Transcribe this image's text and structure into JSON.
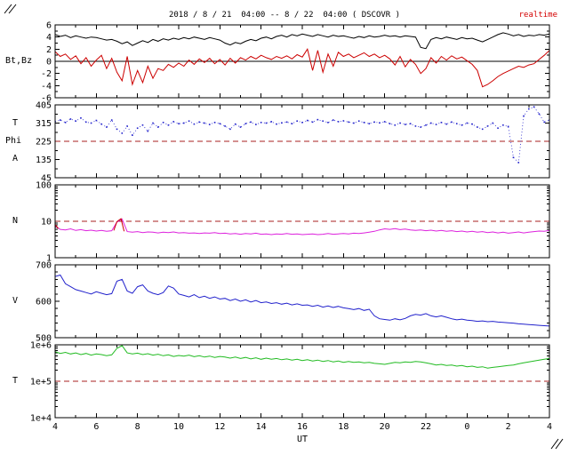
{
  "chart_data": {
    "type": "line",
    "title": "2018 / 8 / 21  04:00 -- 8 / 22  04:00 ( DSCOVR )",
    "corner_label": "realtime",
    "xlabel": "UT",
    "x_range": [
      4,
      28
    ],
    "t_start": 4,
    "t_step": 0.25,
    "x_tick_values": [
      4,
      6,
      8,
      10,
      12,
      14,
      16,
      18,
      20,
      22,
      24,
      26,
      28
    ],
    "x_tick_labels": [
      "4",
      "6",
      "8",
      "10",
      "12",
      "14",
      "16",
      "18",
      "20",
      "22",
      "0",
      "2",
      "4"
    ],
    "panels": [
      {
        "id": "b",
        "label": "Bt,Bz",
        "scale": "linear",
        "range": [
          -6,
          6
        ],
        "ticks": [
          -6,
          -4,
          -2,
          0,
          2,
          4,
          6
        ],
        "tick_labels": [
          "-6",
          "-4",
          "-2",
          "0",
          "2",
          "4",
          "6"
        ],
        "minor_step": 1,
        "zero_line": true,
        "series": [
          {
            "name": "Bt",
            "color": "#000000",
            "values": [
              4.4,
              4.1,
              4.3,
              3.9,
              4.2,
              4.0,
              3.8,
              4.0,
              3.9,
              3.7,
              3.5,
              3.6,
              3.3,
              2.9,
              3.2,
              2.6,
              3.0,
              3.4,
              3.1,
              3.6,
              3.3,
              3.7,
              3.5,
              3.8,
              3.6,
              3.9,
              3.7,
              4.0,
              3.8,
              3.6,
              3.9,
              3.7,
              3.5,
              3.0,
              2.7,
              3.1,
              2.9,
              3.3,
              3.6,
              3.4,
              3.8,
              4.0,
              3.7,
              4.1,
              4.3,
              4.0,
              4.4,
              4.2,
              4.5,
              4.3,
              4.1,
              4.4,
              4.2,
              4.0,
              4.3,
              4.1,
              4.2,
              4.0,
              3.8,
              4.1,
              3.9,
              4.2,
              4.0,
              4.1,
              4.3,
              4.1,
              4.2,
              4.0,
              4.2,
              4.1,
              4.0,
              2.3,
              2.1,
              3.6,
              3.9,
              3.7,
              4.0,
              3.8,
              3.6,
              3.9,
              3.7,
              3.8,
              3.5,
              3.2,
              3.6,
              4.0,
              4.4,
              4.7,
              4.5,
              4.2,
              4.4,
              4.1,
              4.3,
              4.2,
              4.4,
              4.3,
              4.5
            ]
          },
          {
            "name": "Bz",
            "color": "#cc0000",
            "values": [
              1.6,
              0.8,
              1.2,
              0.3,
              0.9,
              -0.4,
              0.6,
              -0.8,
              0.2,
              1.0,
              -1.2,
              0.5,
              -1.8,
              -3.2,
              0.8,
              -3.8,
              -1.5,
              -3.5,
              -0.8,
              -2.8,
              -1.2,
              -1.5,
              -0.5,
              -1.0,
              -0.3,
              -0.8,
              0.2,
              -0.5,
              0.4,
              -0.2,
              0.5,
              -0.4,
              0.3,
              -0.6,
              0.5,
              -0.3,
              0.6,
              0.2,
              0.8,
              0.4,
              1.0,
              0.6,
              0.3,
              0.8,
              0.5,
              0.9,
              0.4,
              1.1,
              0.7,
              2.0,
              -1.5,
              1.8,
              -1.8,
              1.2,
              -0.8,
              1.5,
              0.8,
              1.2,
              0.6,
              1.0,
              1.4,
              0.8,
              1.2,
              0.6,
              1.0,
              0.4,
              -0.6,
              0.8,
              -0.9,
              0.3,
              -0.5,
              -2.0,
              -1.2,
              0.6,
              -0.3,
              0.8,
              0.2,
              0.9,
              0.4,
              0.7,
              0.1,
              -0.5,
              -1.5,
              -4.2,
              -3.8,
              -3.2,
              -2.5,
              -2.0,
              -1.6,
              -1.2,
              -0.8,
              -1.0,
              -0.6,
              -0.4,
              0.3,
              1.0,
              1.8
            ]
          }
        ]
      },
      {
        "id": "angle",
        "label_lines": [
          "T",
          "Phi",
          "A"
        ],
        "scale": "linear",
        "range": [
          45,
          405
        ],
        "ticks": [
          45,
          135,
          225,
          315,
          405
        ],
        "tick_labels": [
          "45",
          "135",
          "225",
          "315",
          "405"
        ],
        "minor_step": 45,
        "ref_line": 225,
        "ref_color": "#aa2222",
        "series": [
          {
            "name": "Phi",
            "color": "#2222cc",
            "style": "dots",
            "values": [
              322,
              330,
              318,
              335,
              325,
              340,
              320,
              315,
              328,
              310,
              295,
              330,
              285,
              265,
              300,
              255,
              290,
              305,
              275,
              315,
              295,
              318,
              305,
              322,
              312,
              315,
              325,
              310,
              320,
              315,
              308,
              318,
              312,
              300,
              285,
              310,
              295,
              312,
              320,
              308,
              318,
              315,
              322,
              310,
              316,
              320,
              312,
              325,
              318,
              328,
              320,
              332,
              325,
              318,
              330,
              322,
              326,
              320,
              315,
              325,
              318,
              312,
              320,
              316,
              322,
              312,
              305,
              315,
              308,
              312,
              300,
              295,
              305,
              315,
              308,
              318,
              310,
              320,
              312,
              305,
              315,
              310,
              295,
              285,
              300,
              315,
              290,
              305,
              298,
              145,
              120,
              350,
              385,
              395,
              360,
              320,
              330
            ]
          }
        ]
      },
      {
        "id": "n",
        "label": "N",
        "scale": "log",
        "range": [
          1,
          100
        ],
        "ticks": [
          1,
          10,
          100
        ],
        "tick_labels": [
          "1",
          "10",
          "100"
        ],
        "ref_line": 10,
        "ref_color": "#aa2222",
        "series": [
          {
            "name": "N",
            "color": "#dd22dd",
            "values": [
              7.5,
              6.0,
              5.8,
              6.2,
              5.6,
              5.9,
              5.5,
              5.7,
              5.4,
              5.6,
              5.3,
              5.5,
              9.5,
              11.5,
              5.2,
              5.0,
              5.2,
              4.9,
              5.1,
              5.0,
              4.8,
              5.0,
              4.9,
              5.1,
              4.8,
              4.9,
              4.7,
              4.8,
              4.6,
              4.8,
              4.7,
              4.9,
              4.6,
              4.7,
              4.5,
              4.6,
              4.4,
              4.6,
              4.5,
              4.7,
              4.4,
              4.5,
              4.3,
              4.5,
              4.4,
              4.6,
              4.4,
              4.5,
              4.3,
              4.4,
              4.5,
              4.3,
              4.4,
              4.6,
              4.4,
              4.5,
              4.6,
              4.5,
              4.7,
              4.6,
              4.8,
              5.0,
              5.3,
              5.8,
              6.2,
              6.0,
              6.3,
              5.9,
              6.1,
              5.8,
              5.6,
              5.8,
              5.5,
              5.7,
              5.4,
              5.6,
              5.3,
              5.5,
              5.2,
              5.4,
              5.1,
              5.3,
              5.0,
              5.2,
              4.9,
              5.1,
              4.8,
              5.0,
              4.7,
              4.9,
              5.1,
              4.8,
              5.0,
              5.2,
              5.4,
              5.3,
              5.6
            ]
          },
          {
            "name": "N_flag",
            "color": "#cc0000",
            "t": [
              4.0,
              4.15,
              5.0,
              6.85,
              7.0,
              7.2,
              7.35
            ],
            "values": [
              8.2,
              6.3,
              null,
              5.6,
              9.8,
              11.8,
              5.3
            ]
          }
        ]
      },
      {
        "id": "v",
        "label": "V",
        "scale": "linear",
        "range": [
          500,
          700
        ],
        "ticks": [
          500,
          600,
          700
        ],
        "tick_labels": [
          "500",
          "600",
          "700"
        ],
        "minor_step": 20,
        "series": [
          {
            "name": "V",
            "color": "#2222cc",
            "values": [
              668,
              672,
              648,
              640,
              632,
              628,
              624,
              620,
              626,
              622,
              618,
              621,
              655,
              660,
              628,
              622,
              640,
              645,
              628,
              622,
              618,
              624,
              642,
              636,
              620,
              616,
              612,
              618,
              610,
              614,
              608,
              612,
              606,
              608,
              602,
              606,
              600,
              604,
              598,
              602,
              596,
              598,
              594,
              596,
              592,
              595,
              590,
              593,
              589,
              590,
              586,
              589,
              584,
              587,
              583,
              586,
              582,
              580,
              577,
              580,
              575,
              578,
              560,
              552,
              550,
              548,
              552,
              549,
              553,
              560,
              564,
              562,
              566,
              560,
              557,
              560,
              556,
              552,
              549,
              551,
              548,
              547,
              545,
              546,
              544,
              545,
              543,
              542,
              541,
              540,
              538,
              537,
              536,
              535,
              534,
              533,
              532
            ]
          }
        ]
      },
      {
        "id": "t",
        "label": "T",
        "scale": "log",
        "range": [
          10000.0,
          1000000.0
        ],
        "ticks": [
          10000.0,
          100000.0,
          1000000.0
        ],
        "tick_labels": [
          "1e+4",
          "1e+5",
          "1e+6"
        ],
        "ref_line": 100000.0,
        "ref_color": "#aa2222",
        "series": [
          {
            "name": "T",
            "color": "#22bb22",
            "values": [
              650000.0,
              580000.0,
              620000.0,
              560000.0,
              600000.0,
              540000.0,
              580000.0,
              520000.0,
              560000.0,
              540000.0,
              500000.0,
              530000.0,
              800000.0,
              950000.0,
              600000.0,
              560000.0,
              590000.0,
              540000.0,
              570000.0,
              520000.0,
              550000.0,
              500000.0,
              530000.0,
              480000.0,
              510000.0,
              490000.0,
              520000.0,
              470000.0,
              500000.0,
              460000.0,
              490000.0,
              450000.0,
              480000.0,
              460000.0,
              430000.0,
              460000.0,
              420000.0,
              450000.0,
              410000.0,
              440000.0,
              400000.0,
              430000.0,
              400000.0,
              420000.0,
              390000.0,
              410000.0,
              380000.0,
              400000.0,
              370000.0,
              390000.0,
              360000.0,
              380000.0,
              350000.0,
              370000.0,
              340000.0,
              360000.0,
              330000.0,
              350000.0,
              330000.0,
              340000.0,
              320000.0,
              330000.0,
              310000.0,
              300000.0,
              290000.0,
              310000.0,
              330000.0,
              320000.0,
              340000.0,
              330000.0,
              350000.0,
              340000.0,
              320000.0,
              300000.0,
              280000.0,
              290000.0,
              270000.0,
              280000.0,
              260000.0,
              270000.0,
              250000.0,
              260000.0,
              240000.0,
              250000.0,
              230000.0,
              240000.0,
              250000.0,
              260000.0,
              270000.0,
              280000.0,
              300000.0,
              320000.0,
              340000.0,
              360000.0,
              380000.0,
              400000.0,
              420000.0
            ]
          }
        ]
      }
    ]
  }
}
